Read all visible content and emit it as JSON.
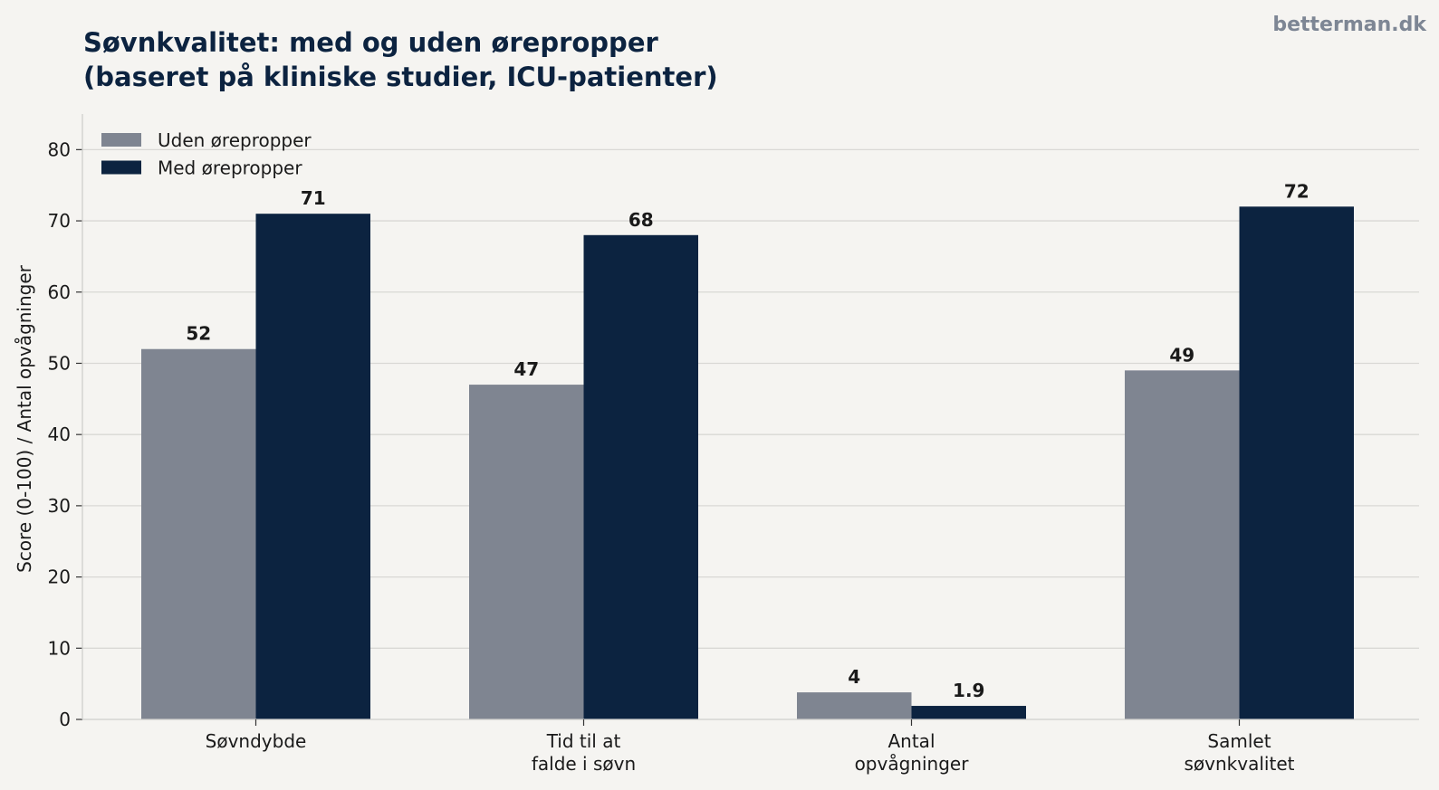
{
  "brand": "betterman.dk",
  "chart_data": {
    "type": "bar",
    "title": [
      "Søvnkvalitet: med og uden ørepropper",
      "(baseret på kliniske studier, ICU-patienter)"
    ],
    "xlabel": "",
    "ylabel": "Score (0-100) / Antal opvågninger",
    "ylim": [
      0,
      85
    ],
    "yticks": [
      0,
      10,
      20,
      30,
      40,
      50,
      60,
      70,
      80
    ],
    "grid": "horizontal",
    "legend_position": "top-left",
    "categories": [
      [
        "Søvndybde"
      ],
      [
        "Tid til at",
        "falde i søvn"
      ],
      [
        "Antal",
        "opvågninger"
      ],
      [
        "Samlet",
        "søvnkvalitet"
      ]
    ],
    "series": [
      {
        "name": "Uden ørepropper",
        "color": "#7f8591",
        "values": [
          52,
          47,
          3.8,
          49
        ],
        "labels": [
          "52",
          "47",
          "4",
          "49"
        ]
      },
      {
        "name": "Med ørepropper",
        "color": "#0c2340",
        "values": [
          71,
          68,
          1.9,
          72
        ],
        "labels": [
          "71",
          "68",
          "1.9",
          "72"
        ]
      }
    ]
  }
}
